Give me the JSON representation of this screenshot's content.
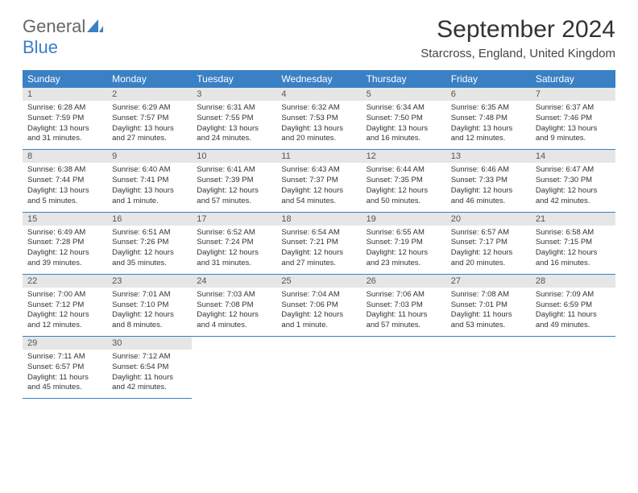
{
  "logo": {
    "top": "General",
    "bottom": "Blue"
  },
  "title": "September 2024",
  "location": "Starcross, England, United Kingdom",
  "weekdays": [
    "Sunday",
    "Monday",
    "Tuesday",
    "Wednesday",
    "Thursday",
    "Friday",
    "Saturday"
  ],
  "colors": {
    "header_bg": "#3a80c4",
    "header_text": "#ffffff",
    "daynum_bg": "#e6e6e6",
    "border": "#3a80c4"
  },
  "font": {
    "family": "Arial",
    "title_size": 30,
    "location_size": 15,
    "weekday_size": 12,
    "daynum_size": 11,
    "info_size": 9.5
  },
  "days": [
    {
      "n": 1,
      "sunrise": "6:28 AM",
      "sunset": "7:59 PM",
      "daylight": "13 hours and 31 minutes."
    },
    {
      "n": 2,
      "sunrise": "6:29 AM",
      "sunset": "7:57 PM",
      "daylight": "13 hours and 27 minutes."
    },
    {
      "n": 3,
      "sunrise": "6:31 AM",
      "sunset": "7:55 PM",
      "daylight": "13 hours and 24 minutes."
    },
    {
      "n": 4,
      "sunrise": "6:32 AM",
      "sunset": "7:53 PM",
      "daylight": "13 hours and 20 minutes."
    },
    {
      "n": 5,
      "sunrise": "6:34 AM",
      "sunset": "7:50 PM",
      "daylight": "13 hours and 16 minutes."
    },
    {
      "n": 6,
      "sunrise": "6:35 AM",
      "sunset": "7:48 PM",
      "daylight": "13 hours and 12 minutes."
    },
    {
      "n": 7,
      "sunrise": "6:37 AM",
      "sunset": "7:46 PM",
      "daylight": "13 hours and 9 minutes."
    },
    {
      "n": 8,
      "sunrise": "6:38 AM",
      "sunset": "7:44 PM",
      "daylight": "13 hours and 5 minutes."
    },
    {
      "n": 9,
      "sunrise": "6:40 AM",
      "sunset": "7:41 PM",
      "daylight": "13 hours and 1 minute."
    },
    {
      "n": 10,
      "sunrise": "6:41 AM",
      "sunset": "7:39 PM",
      "daylight": "12 hours and 57 minutes."
    },
    {
      "n": 11,
      "sunrise": "6:43 AM",
      "sunset": "7:37 PM",
      "daylight": "12 hours and 54 minutes."
    },
    {
      "n": 12,
      "sunrise": "6:44 AM",
      "sunset": "7:35 PM",
      "daylight": "12 hours and 50 minutes."
    },
    {
      "n": 13,
      "sunrise": "6:46 AM",
      "sunset": "7:33 PM",
      "daylight": "12 hours and 46 minutes."
    },
    {
      "n": 14,
      "sunrise": "6:47 AM",
      "sunset": "7:30 PM",
      "daylight": "12 hours and 42 minutes."
    },
    {
      "n": 15,
      "sunrise": "6:49 AM",
      "sunset": "7:28 PM",
      "daylight": "12 hours and 39 minutes."
    },
    {
      "n": 16,
      "sunrise": "6:51 AM",
      "sunset": "7:26 PM",
      "daylight": "12 hours and 35 minutes."
    },
    {
      "n": 17,
      "sunrise": "6:52 AM",
      "sunset": "7:24 PM",
      "daylight": "12 hours and 31 minutes."
    },
    {
      "n": 18,
      "sunrise": "6:54 AM",
      "sunset": "7:21 PM",
      "daylight": "12 hours and 27 minutes."
    },
    {
      "n": 19,
      "sunrise": "6:55 AM",
      "sunset": "7:19 PM",
      "daylight": "12 hours and 23 minutes."
    },
    {
      "n": 20,
      "sunrise": "6:57 AM",
      "sunset": "7:17 PM",
      "daylight": "12 hours and 20 minutes."
    },
    {
      "n": 21,
      "sunrise": "6:58 AM",
      "sunset": "7:15 PM",
      "daylight": "12 hours and 16 minutes."
    },
    {
      "n": 22,
      "sunrise": "7:00 AM",
      "sunset": "7:12 PM",
      "daylight": "12 hours and 12 minutes."
    },
    {
      "n": 23,
      "sunrise": "7:01 AM",
      "sunset": "7:10 PM",
      "daylight": "12 hours and 8 minutes."
    },
    {
      "n": 24,
      "sunrise": "7:03 AM",
      "sunset": "7:08 PM",
      "daylight": "12 hours and 4 minutes."
    },
    {
      "n": 25,
      "sunrise": "7:04 AM",
      "sunset": "7:06 PM",
      "daylight": "12 hours and 1 minute."
    },
    {
      "n": 26,
      "sunrise": "7:06 AM",
      "sunset": "7:03 PM",
      "daylight": "11 hours and 57 minutes."
    },
    {
      "n": 27,
      "sunrise": "7:08 AM",
      "sunset": "7:01 PM",
      "daylight": "11 hours and 53 minutes."
    },
    {
      "n": 28,
      "sunrise": "7:09 AM",
      "sunset": "6:59 PM",
      "daylight": "11 hours and 49 minutes."
    },
    {
      "n": 29,
      "sunrise": "7:11 AM",
      "sunset": "6:57 PM",
      "daylight": "11 hours and 45 minutes."
    },
    {
      "n": 30,
      "sunrise": "7:12 AM",
      "sunset": "6:54 PM",
      "daylight": "11 hours and 42 minutes."
    }
  ],
  "layout": {
    "start_weekday": 0,
    "cols": 7
  }
}
